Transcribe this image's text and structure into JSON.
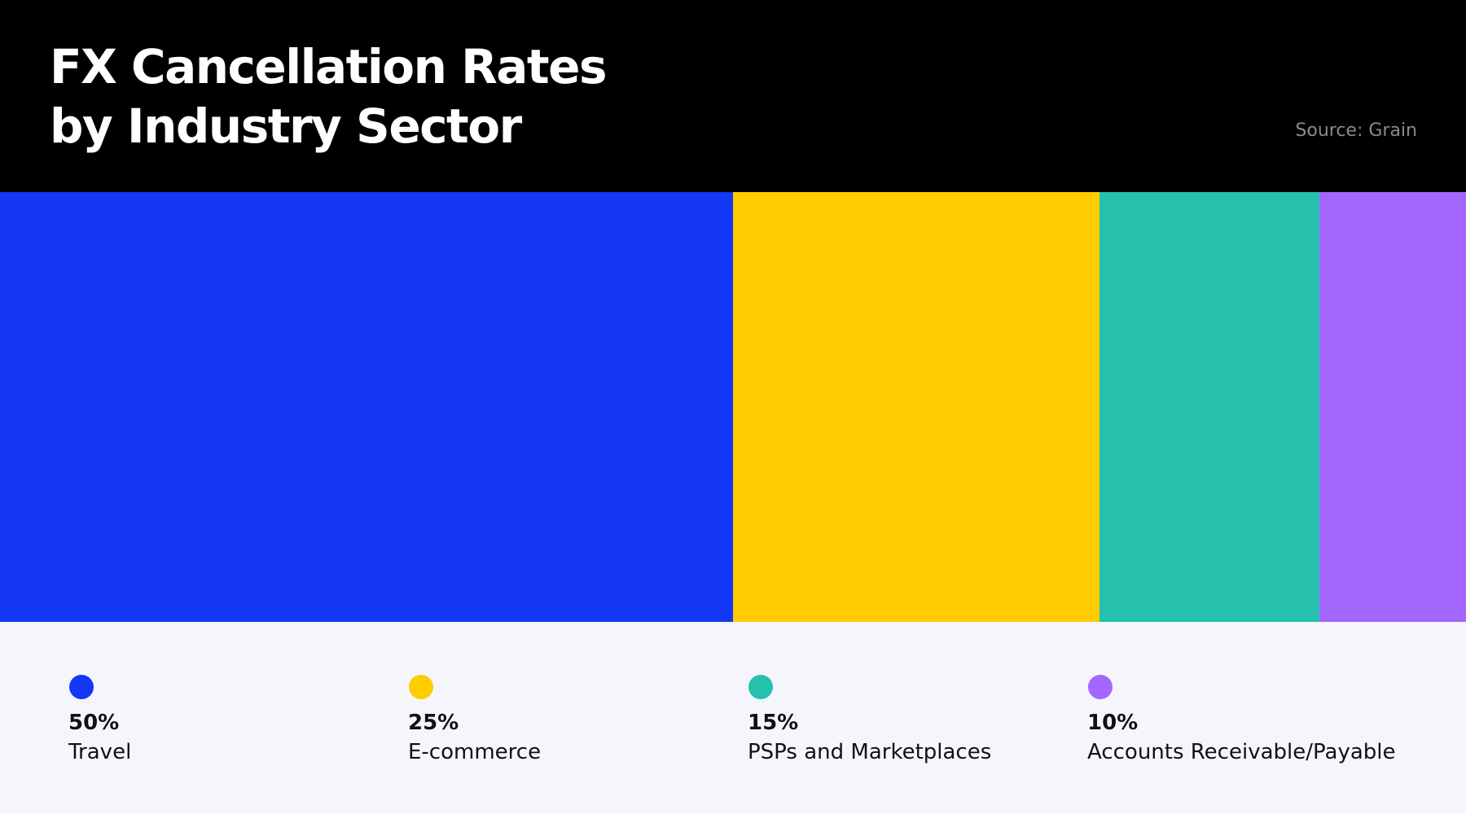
{
  "header": {
    "title": "FX Cancellation Rates\nby Industry Sector",
    "source": "Source: Grain"
  },
  "chart_data": {
    "type": "bar",
    "subtype": "stacked-100-percent",
    "title": "FX Cancellation Rates\nby Industry Sector",
    "categories": [
      "Travel",
      "E-commerce",
      "PSPs and Marketplaces",
      "Accounts Receivable/Payable"
    ],
    "values": [
      50,
      25,
      15,
      10
    ],
    "value_labels": [
      "50%",
      "25%",
      "15%",
      "10%"
    ],
    "colors": [
      "#1436f5",
      "#ffcc00",
      "#26c1ac",
      "#a366ff"
    ],
    "legend": "bottom",
    "grid": false
  }
}
